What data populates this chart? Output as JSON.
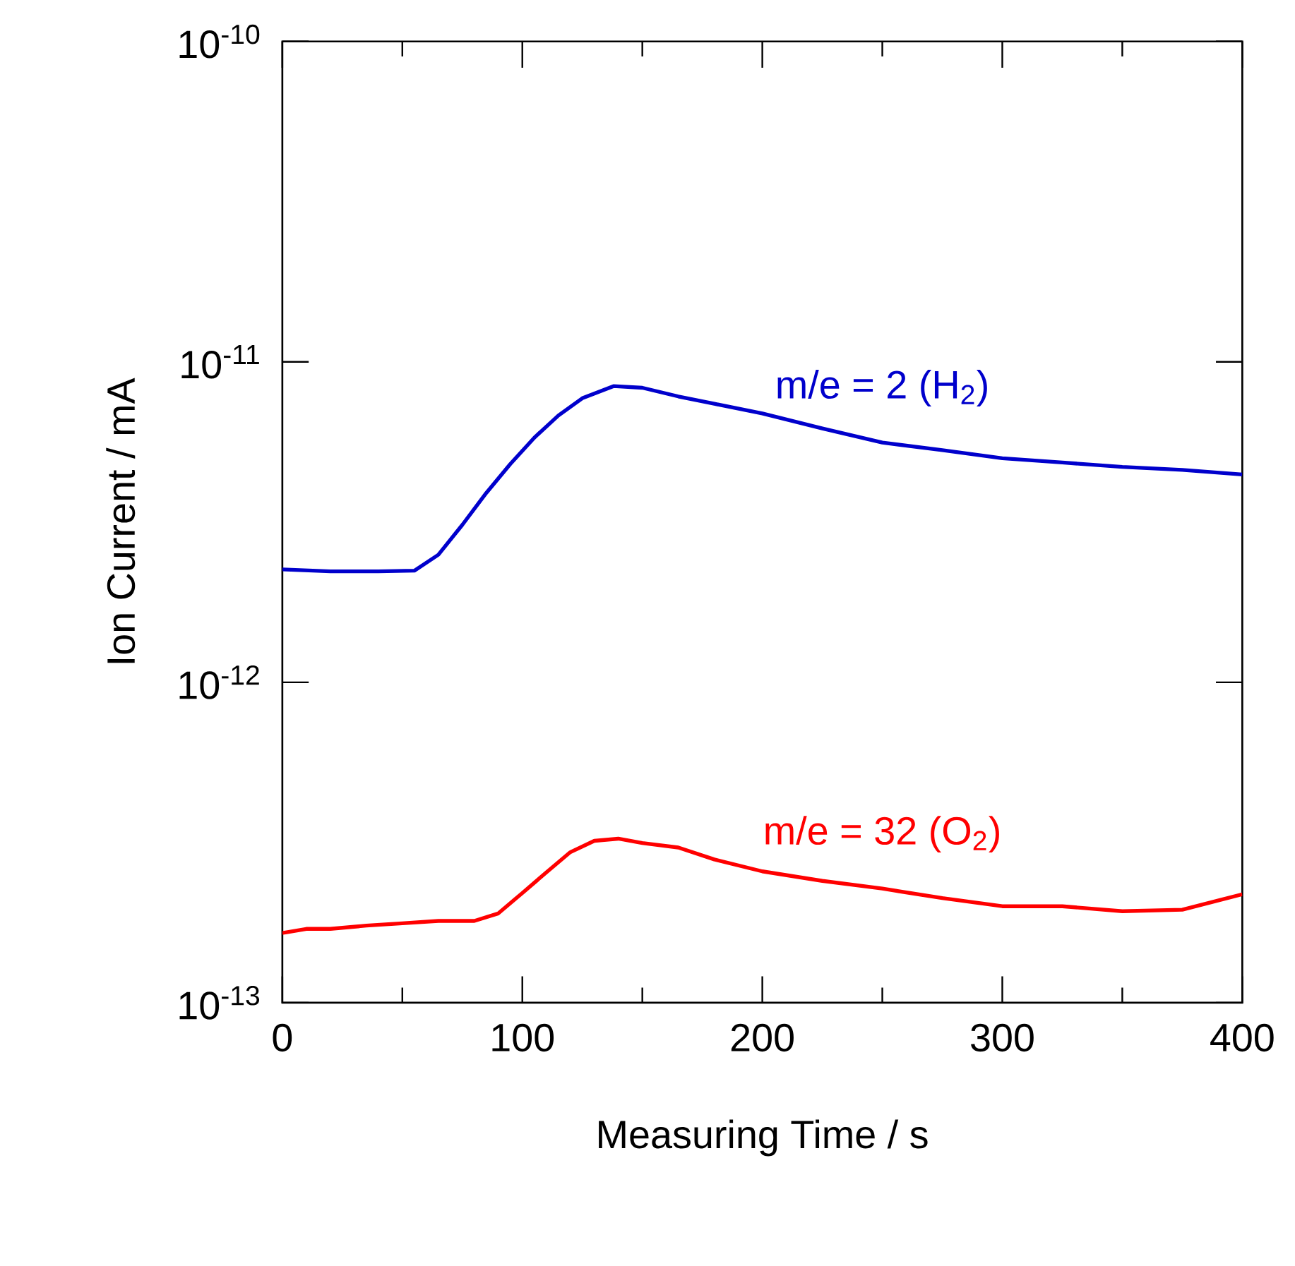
{
  "chart_data": {
    "type": "line",
    "xlabel": "Measuring Time / s",
    "ylabel": "Ion Current / mA",
    "log": "y",
    "xlim": [
      0,
      400
    ],
    "ylim": [
      1e-13,
      1e-10
    ],
    "xticks": [
      0,
      100,
      200,
      300,
      400
    ],
    "yticks": [
      {
        "value": 1e-13,
        "label": "10$^{-13}$"
      },
      {
        "value": 1e-12,
        "label": "10$^{-12}$"
      },
      {
        "value": 1e-11,
        "label": "10$^{-11}$"
      },
      {
        "value": 1e-10,
        "label": "10$^{-10}$"
      }
    ],
    "grid": false,
    "legend": false,
    "marker": "none",
    "line_style": "solid",
    "series": [
      {
        "name": "m/e = 2 (H$_{2}$)",
        "color": "#0000cc",
        "x": [
          0,
          20,
          40,
          55,
          65,
          75,
          85,
          95,
          105,
          115,
          125,
          138,
          150,
          165,
          180,
          200,
          225,
          250,
          275,
          300,
          325,
          350,
          375,
          400
        ],
        "values": [
          2.25e-12,
          2.22e-12,
          2.22e-12,
          2.23e-12,
          2.5e-12,
          3.1e-12,
          3.9e-12,
          4.8e-12,
          5.8e-12,
          6.8e-12,
          7.7e-12,
          8.4e-12,
          8.3e-12,
          7.8e-12,
          7.4e-12,
          6.9e-12,
          6.2e-12,
          5.6e-12,
          5.3e-12,
          5e-12,
          4.85e-12,
          4.7e-12,
          4.6e-12,
          4.45e-12
        ]
      },
      {
        "name": "m/e = 32 (O$_{2}$)",
        "color": "#ff0000",
        "x": [
          0,
          10,
          20,
          35,
          50,
          65,
          80,
          90,
          100,
          110,
          120,
          130,
          140,
          150,
          165,
          180,
          200,
          225,
          250,
          275,
          300,
          325,
          350,
          375,
          400
        ],
        "values": [
          1.65e-13,
          1.7e-13,
          1.7e-13,
          1.74e-13,
          1.77e-13,
          1.8e-13,
          1.8e-13,
          1.9e-13,
          2.2e-13,
          2.55e-13,
          2.95e-13,
          3.2e-13,
          3.25e-13,
          3.15e-13,
          3.05e-13,
          2.8e-13,
          2.57e-13,
          2.4e-13,
          2.27e-13,
          2.12e-13,
          2e-13,
          2e-13,
          1.93e-13,
          1.95e-13,
          2.18e-13
        ]
      }
    ]
  }
}
